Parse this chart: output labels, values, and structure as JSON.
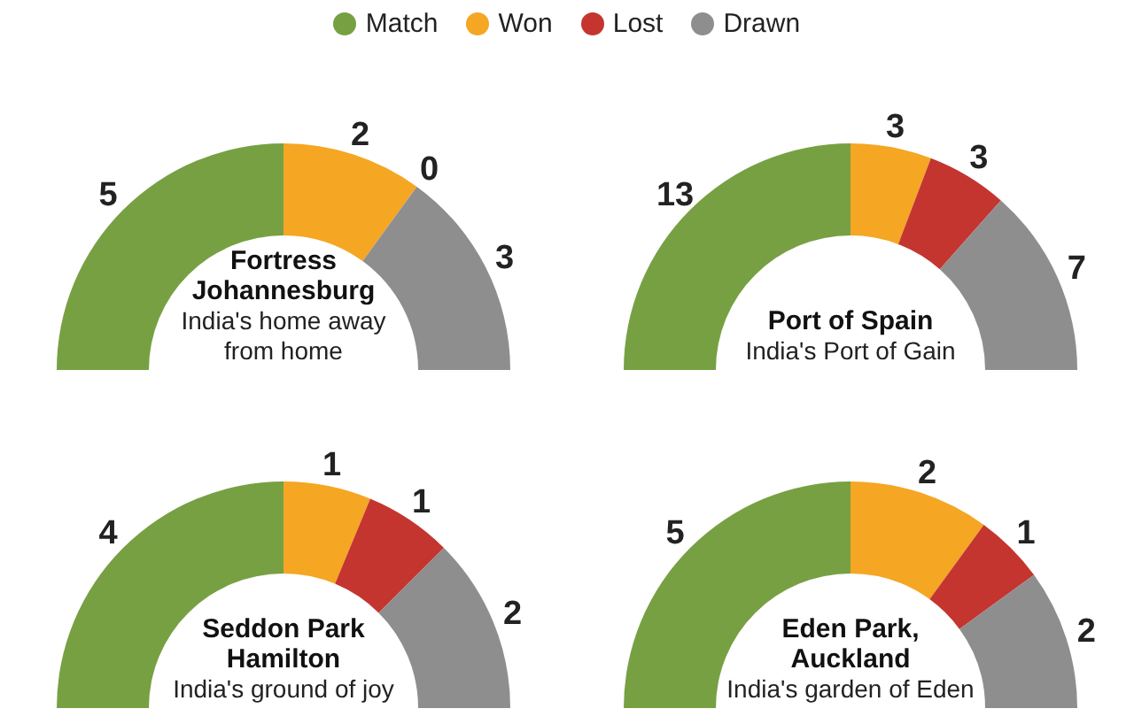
{
  "chart_data": [
    {
      "type": "donut",
      "title": "Fortress Johannesburg",
      "subtitle": "India's home away from home",
      "categories": [
        "Match",
        "Won",
        "Lost",
        "Drawn"
      ],
      "values": [
        5,
        2,
        0,
        3
      ],
      "value_labels": [
        "5",
        "2",
        "0",
        "3"
      ],
      "colors": [
        "#77a043",
        "#f5a623",
        "#c43530",
        "#8e8e8e"
      ],
      "legend": "top"
    },
    {
      "type": "donut",
      "title": "Port of Spain",
      "subtitle": "India's Port of Gain",
      "categories": [
        null,
        null,
        null,
        null
      ],
      "values": [
        13,
        3,
        3,
        7
      ],
      "colors": [
        "#77a043",
        "#f5a623",
        "#c43530",
        "#8e8e8e"
      ],
      "data_labels": true
    },
    {
      "type": "donut",
      "title": "Seddon Park Hamilton",
      "subtitle": "India's ground of joy",
      "categories": [
        null,
        null,
        null,
        null
      ],
      "values": [
        4,
        1,
        1,
        2
      ],
      "colors": [
        "#77a043",
        "#f5a623",
        "#c43530",
        "#8e8e8e"
      ],
      "data_labels": true
    },
    {
      "type": "donut",
      "title": "Eden Park, Auckland",
      "subtitle": "India's garden of Eden",
      "categories": [
        null,
        null,
        null,
        null
      ],
      "values": [
        5,
        2,
        1,
        2
      ],
      "colors": [
        "#77a043",
        "#f5a623",
        "#c43530",
        "#8e8e8e"
      ],
      "data_labels": true
    }
  ]
}
